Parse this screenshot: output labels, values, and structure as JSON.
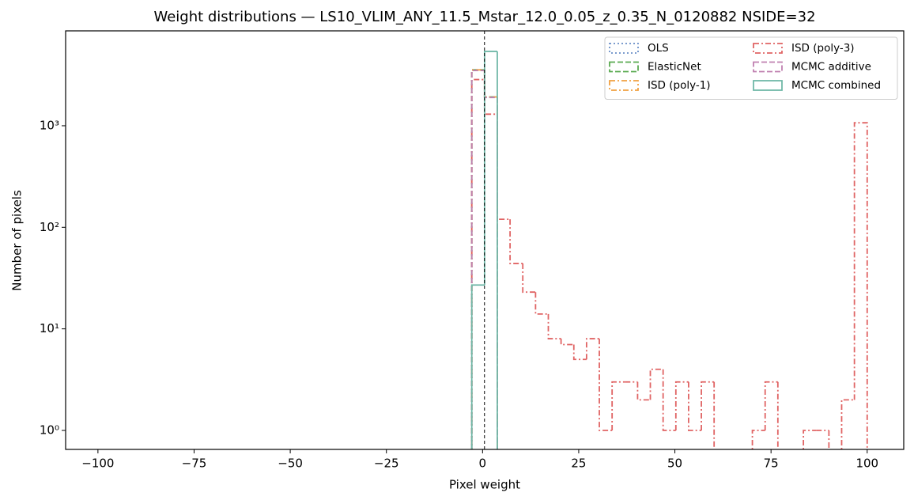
{
  "chart_data": {
    "type": "histogram",
    "title": "Weight distributions — LS10_VLIM_ANY_11.5_Mstar_12.0_0.05_z_0.35_N_0120882  NSIDE=32",
    "xlabel": "Pixel weight",
    "ylabel": "Number of pixels",
    "bins": [
      -2.8,
      0.52,
      3.83,
      7.15,
      10.46,
      13.78,
      17.1,
      20.41,
      23.73,
      27.04,
      30.36,
      33.68,
      36.99,
      40.31,
      43.62,
      46.94,
      50.26,
      53.57,
      56.89,
      60.2,
      63.52,
      66.84,
      70.15,
      73.47,
      76.78,
      80.1,
      83.42,
      86.73,
      90.05,
      93.36,
      96.68,
      100
    ],
    "series": [
      {
        "name": "OLS",
        "color": "#6a8fc8",
        "linestyle": "dotted",
        "values": [
          3550,
          1920,
          0,
          0,
          0,
          0,
          0,
          0,
          0,
          0,
          0,
          0,
          0,
          0,
          0,
          0,
          0,
          0,
          0,
          0,
          0,
          0,
          0,
          0,
          0,
          0,
          0,
          0,
          0,
          0,
          0
        ]
      },
      {
        "name": "ElasticNet",
        "color": "#5aaa50",
        "linestyle": "dashed",
        "values": [
          3550,
          1920,
          0,
          0,
          0,
          0,
          0,
          0,
          0,
          0,
          0,
          0,
          0,
          0,
          0,
          0,
          0,
          0,
          0,
          0,
          0,
          0,
          0,
          0,
          0,
          0,
          0,
          0,
          0,
          0,
          0
        ]
      },
      {
        "name": "ISD (poly-1)",
        "color": "#f0a040",
        "linestyle": "dashdot",
        "values": [
          3550,
          1920,
          0,
          0,
          0,
          0,
          0,
          0,
          0,
          0,
          0,
          0,
          0,
          0,
          0,
          0,
          0,
          0,
          0,
          0,
          0,
          0,
          0,
          0,
          0,
          0,
          0,
          0,
          0,
          0,
          0
        ]
      },
      {
        "name": "ISD (poly-3)",
        "color": "#e06464",
        "linestyle": "dashdot",
        "values": [
          2850,
          1300,
          120,
          44,
          23,
          14,
          8,
          7,
          5,
          8,
          1,
          3,
          3,
          2,
          4,
          1,
          3,
          1,
          3,
          0,
          0,
          0,
          1,
          3,
          0,
          0,
          1,
          1,
          0,
          2,
          1070
        ]
      },
      {
        "name": "MCMC additive",
        "color": "#c080b0",
        "linestyle": "dashed",
        "values": [
          3500,
          1900,
          0,
          0,
          0,
          0,
          0,
          0,
          0,
          0,
          0,
          0,
          0,
          0,
          0,
          0,
          0,
          0,
          0,
          0,
          0,
          0,
          0,
          0,
          0,
          0,
          0,
          0,
          0,
          0,
          0
        ]
      },
      {
        "name": "MCMC combined",
        "color": "#70b8a8",
        "linestyle": "solid",
        "values": [
          27,
          5400,
          0,
          0,
          0,
          0,
          0,
          0,
          0,
          0,
          0,
          0,
          0,
          0,
          0,
          0,
          0,
          0,
          0,
          0,
          0,
          0,
          0,
          0,
          0,
          0,
          0,
          0,
          0,
          0,
          0
        ]
      }
    ],
    "vline": 0.5,
    "xlim": [
      -108.4,
      109.5
    ],
    "xticks": [
      {
        "value": -100,
        "label": "−100"
      },
      {
        "value": -75,
        "label": "−75"
      },
      {
        "value": -50,
        "label": "−50"
      },
      {
        "value": -25,
        "label": "−25"
      },
      0,
      25,
      50,
      75,
      100
    ],
    "ylim": [
      0.65,
      8600
    ],
    "yscale": "log",
    "yticks": [
      {
        "value": 1,
        "label": "10⁰"
      },
      {
        "value": 10,
        "label": "10¹"
      },
      {
        "value": 100,
        "label": "10²"
      },
      {
        "value": 1000,
        "label": "10³"
      }
    ],
    "legend": "upper right",
    "legend_columns": 2
  }
}
